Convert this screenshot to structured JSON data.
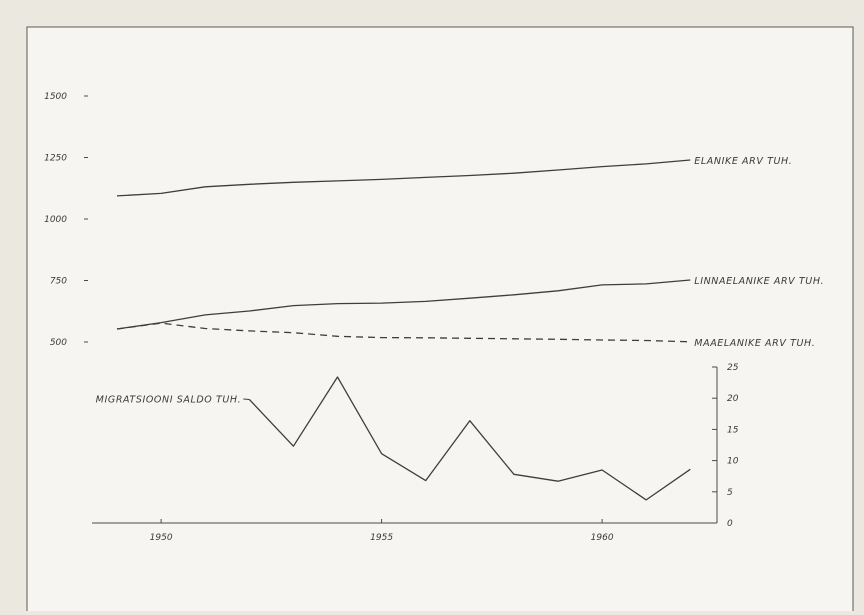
{
  "chart_data": {
    "type": "line",
    "title": "",
    "x": [
      1949,
      1950,
      1951,
      1952,
      1953,
      1954,
      1955,
      1956,
      1957,
      1958,
      1959,
      1960,
      1961,
      1962
    ],
    "x_ticks": [
      "1950",
      "1955",
      "1960"
    ],
    "left_axis": {
      "ticks": [
        "500",
        "750",
        "1000",
        "1250",
        "1500"
      ],
      "range": [
        500,
        1500
      ]
    },
    "right_axis": {
      "ticks": [
        "0",
        "5",
        "10",
        "15",
        "20",
        "25"
      ],
      "range": [
        0,
        25
      ]
    },
    "series": [
      {
        "name": "ELANIKE ARV TUH.",
        "axis": "left",
        "style": "solid",
        "values": [
          1094,
          1104,
          1131,
          1141,
          1149,
          1155,
          1161,
          1169,
          1177,
          1186,
          1199,
          1213,
          1224,
          1240
        ]
      },
      {
        "name": "LINNAELANIKE ARV TUH.",
        "axis": "left",
        "style": "solid",
        "values": [
          553,
          579,
          610,
          626,
          648,
          656,
          658,
          665,
          678,
          692,
          708,
          732,
          736,
          752
        ]
      },
      {
        "name": "MAAELANIKE ARV TUH.",
        "axis": "left",
        "style": "dashed",
        "values": [
          553,
          577,
          555,
          545,
          538,
          523,
          518,
          517,
          515,
          513,
          511,
          508,
          506,
          501
        ]
      },
      {
        "name": "MIGRATSIOONI SALDO TUH.",
        "axis": "right",
        "style": "solid",
        "x": [
          1952,
          1953,
          1954,
          1955,
          1956,
          1957,
          1958,
          1959,
          1960,
          1961,
          1962
        ],
        "values": [
          19.8,
          12.3,
          23.4,
          11.1,
          6.8,
          16.4,
          7.8,
          6.7,
          8.5,
          3.7,
          8.6
        ]
      }
    ],
    "grid": false
  }
}
